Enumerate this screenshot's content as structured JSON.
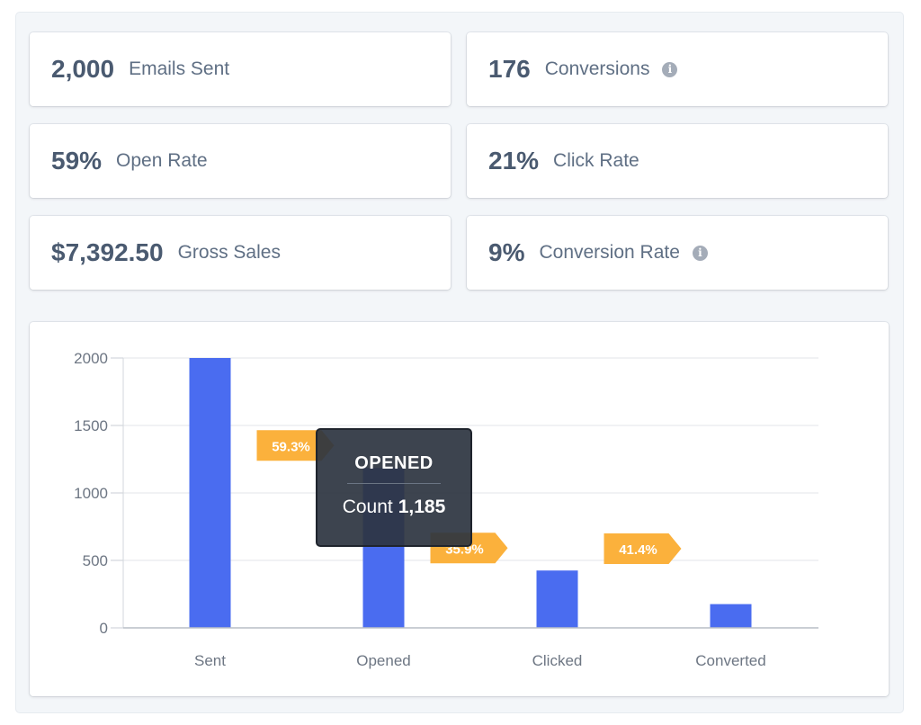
{
  "stats": [
    {
      "value": "2,000",
      "label": "Emails Sent",
      "info": false
    },
    {
      "value": "176",
      "label": "Conversions",
      "info": true
    },
    {
      "value": "59%",
      "label": "Open Rate",
      "info": false
    },
    {
      "value": "21%",
      "label": "Click Rate",
      "info": false
    },
    {
      "value": "$7,392.50",
      "label": "Gross Sales",
      "info": false
    },
    {
      "value": "9%",
      "label": "Conversion Rate",
      "info": true
    }
  ],
  "info_icon_glyph": "i",
  "colors": {
    "bar": "#4a6cf0",
    "arrow": "#fbb13c",
    "tooltip_bg": "#2d3440",
    "text": "#4a5a70"
  },
  "chart_data": {
    "type": "bar",
    "categories": [
      "Sent",
      "Opened",
      "Clicked",
      "Converted"
    ],
    "values": [
      2000,
      1185,
      425,
      176
    ],
    "ylim": [
      0,
      2000
    ],
    "yticks": [
      0,
      500,
      1000,
      1500,
      2000
    ],
    "grid": true,
    "conversion_labels": [
      "59.3%",
      "35.9%",
      "41.4%"
    ],
    "tooltip": {
      "title": "OPENED",
      "label": "Count",
      "value": "1,185"
    }
  }
}
